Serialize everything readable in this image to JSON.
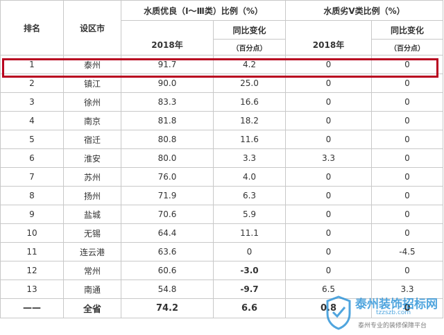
{
  "table": {
    "headers": {
      "rank": "排名",
      "city": "设区市",
      "good_group": "水质优良（Ⅰ～Ⅲ类）比例（%）",
      "bad_group": "水质劣Ⅴ类比例（%）",
      "year": "2018年",
      "yoy": "同比变化",
      "unit": "（百分点）"
    },
    "rows": [
      {
        "rank": "1",
        "city": "泰州",
        "good_2018": "91.7",
        "good_change": "4.2",
        "bad_2018": "0",
        "bad_change": "0"
      },
      {
        "rank": "2",
        "city": "镇江",
        "good_2018": "90.0",
        "good_change": "25.0",
        "bad_2018": "0",
        "bad_change": "0"
      },
      {
        "rank": "3",
        "city": "徐州",
        "good_2018": "83.3",
        "good_change": "16.6",
        "bad_2018": "0",
        "bad_change": "0"
      },
      {
        "rank": "4",
        "city": "南京",
        "good_2018": "81.8",
        "good_change": "18.2",
        "bad_2018": "0",
        "bad_change": "0"
      },
      {
        "rank": "5",
        "city": "宿迁",
        "good_2018": "80.8",
        "good_change": "11.6",
        "bad_2018": "0",
        "bad_change": "0"
      },
      {
        "rank": "6",
        "city": "淮安",
        "good_2018": "80.0",
        "good_change": "3.3",
        "bad_2018": "3.3",
        "bad_change": "0"
      },
      {
        "rank": "7",
        "city": "苏州",
        "good_2018": "76.0",
        "good_change": "4.0",
        "bad_2018": "0",
        "bad_change": "0"
      },
      {
        "rank": "8",
        "city": "扬州",
        "good_2018": "71.9",
        "good_change": "6.3",
        "bad_2018": "0",
        "bad_change": "0"
      },
      {
        "rank": "9",
        "city": "盐城",
        "good_2018": "70.6",
        "good_change": "5.9",
        "bad_2018": "0",
        "bad_change": "0"
      },
      {
        "rank": "10",
        "city": "无锡",
        "good_2018": "64.4",
        "good_change": "11.1",
        "bad_2018": "0",
        "bad_change": "0"
      },
      {
        "rank": "11",
        "city": "连云港",
        "good_2018": "63.6",
        "good_change": "0",
        "bad_2018": "0",
        "bad_change": "-4.5"
      },
      {
        "rank": "12",
        "city": "常州",
        "good_2018": "60.6",
        "good_change": "-3.0",
        "bad_2018": "0",
        "bad_change": "0"
      },
      {
        "rank": "13",
        "city": "南通",
        "good_2018": "54.8",
        "good_change": "-9.7",
        "bad_2018": "6.5",
        "bad_change": "3.3"
      }
    ],
    "total": {
      "rank": "——",
      "city": "全省",
      "good_2018": "74.2",
      "good_change": "6.6",
      "bad_2018": "0.8",
      "bad_change": "0"
    },
    "bold_changes": [
      "-3.0",
      "-9.7"
    ]
  },
  "highlight": {
    "row_rank": "1",
    "color": "#b8001f"
  },
  "watermark": {
    "title": "泰州装饰招标网",
    "site": "tzzszb.com",
    "slogan": "泰州专业的装修保障平台",
    "color": "#1f8dd6"
  }
}
